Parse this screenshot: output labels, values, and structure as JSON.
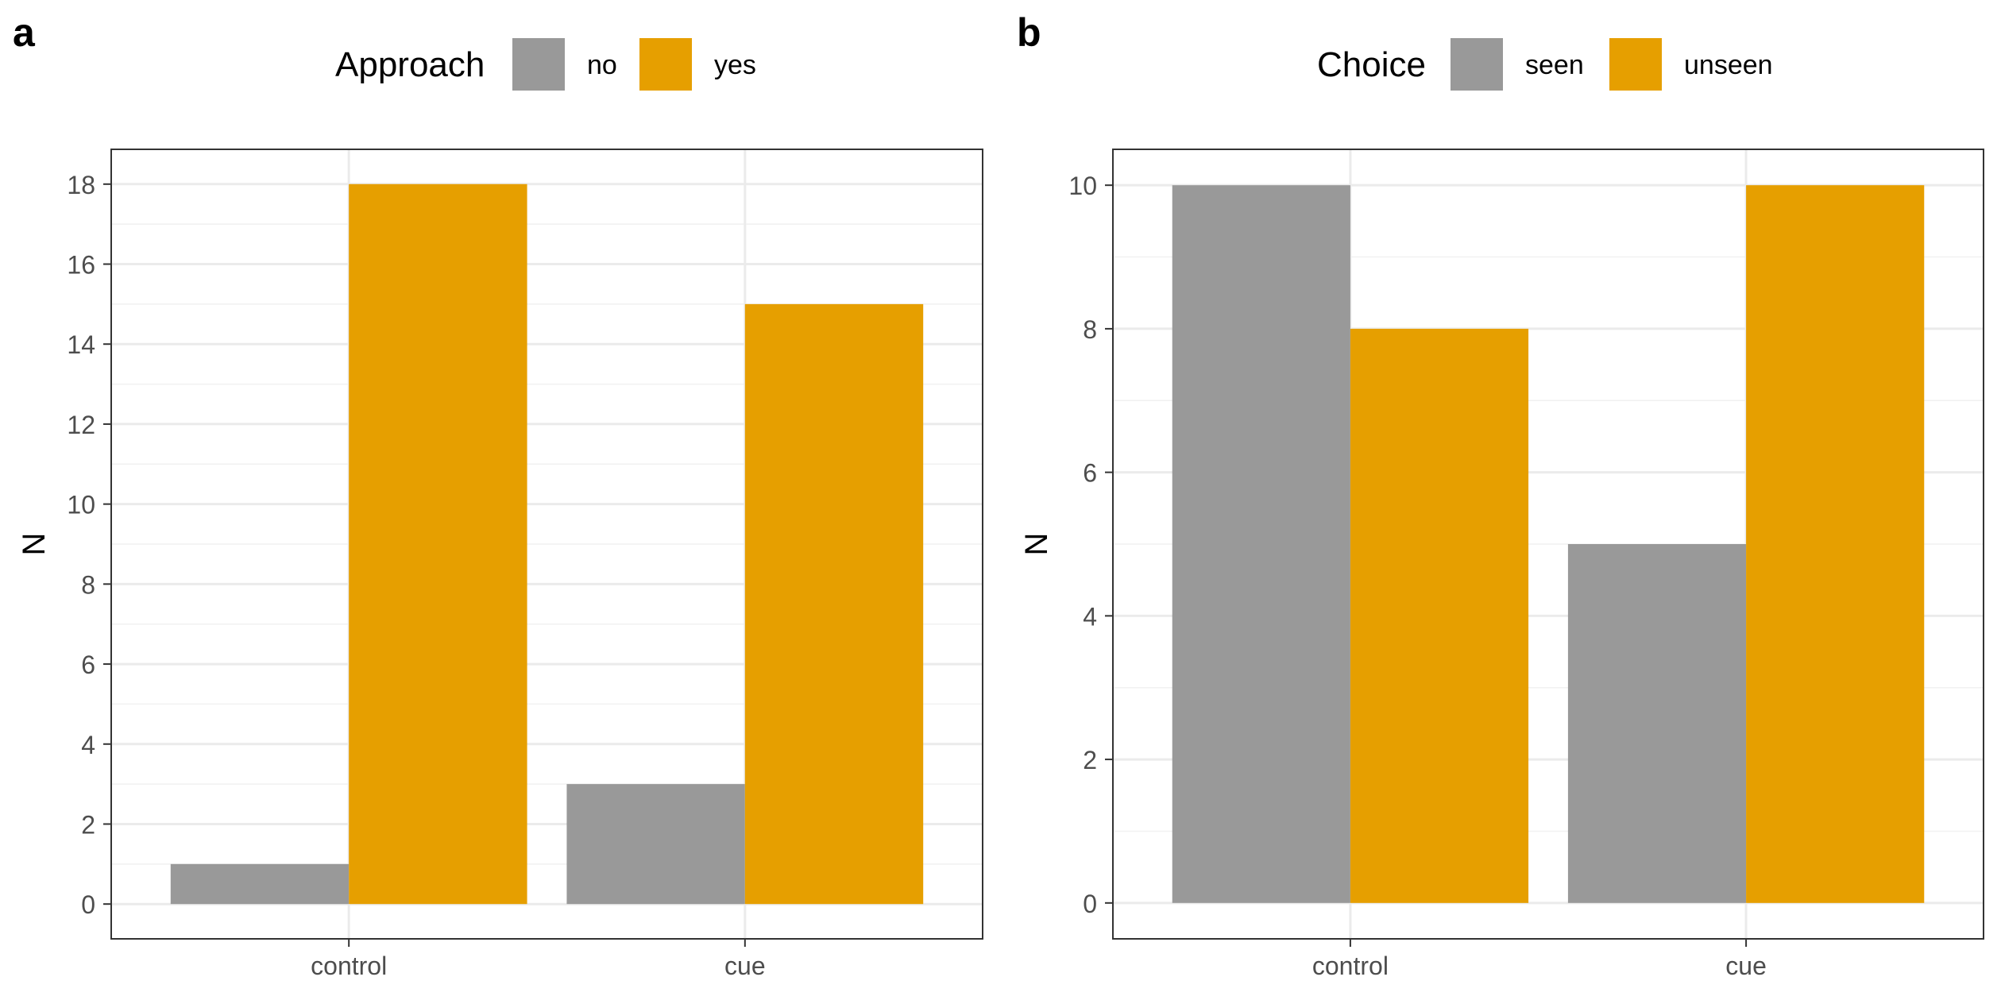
{
  "panels": [
    {
      "tag": "a",
      "legend_title": "Approach",
      "ylabel": "N",
      "xlabel": ""
    },
    {
      "tag": "b",
      "legend_title": "Choice",
      "ylabel": "N",
      "xlabel": ""
    }
  ],
  "colors": {
    "gray": "#999999",
    "orange": "#E69F00"
  },
  "chart_data": [
    {
      "type": "bar",
      "title": "",
      "xlabel": "",
      "ylabel": "N",
      "categories": [
        "control",
        "cue"
      ],
      "series": [
        {
          "name": "no",
          "values": [
            1,
            3
          ],
          "color": "#999999"
        },
        {
          "name": "yes",
          "values": [
            18,
            15
          ],
          "color": "#E69F00"
        }
      ],
      "ylim": [
        -0.87,
        18.87
      ],
      "yticks": [
        0,
        2,
        4,
        6,
        8,
        10,
        12,
        14,
        16,
        18
      ],
      "yminor": [
        1,
        3,
        5,
        7,
        9,
        11,
        13,
        15,
        17
      ],
      "legend_title": "Approach",
      "legend_position": "top",
      "grid": true
    },
    {
      "type": "bar",
      "title": "",
      "xlabel": "",
      "ylabel": "N",
      "categories": [
        "control",
        "cue"
      ],
      "series": [
        {
          "name": "seen",
          "values": [
            10,
            5
          ],
          "color": "#999999"
        },
        {
          "name": "unseen",
          "values": [
            8,
            10
          ],
          "color": "#E69F00"
        }
      ],
      "ylim": [
        -0.5,
        10.5
      ],
      "yticks": [
        0,
        2,
        4,
        6,
        8,
        10
      ],
      "yminor": [
        1,
        3,
        5,
        7,
        9
      ],
      "legend_title": "Choice",
      "legend_position": "top",
      "grid": true
    }
  ]
}
